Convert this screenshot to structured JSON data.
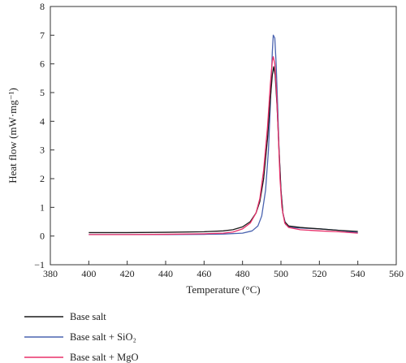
{
  "chart_data": {
    "type": "line",
    "xlabel": "Temperature (°C)",
    "ylabel": "Heat flow (mW·mg⁻¹)",
    "xlim": [
      380,
      560
    ],
    "ylim": [
      -1,
      8
    ],
    "xticks": [
      380,
      400,
      420,
      440,
      460,
      480,
      500,
      520,
      540,
      560
    ],
    "yticks": [
      -1,
      0,
      1,
      2,
      3,
      4,
      5,
      6,
      7,
      8
    ],
    "grid": false,
    "legend_position": "bottom-left",
    "series": [
      {
        "name": "Base salt",
        "color": "#1a1a1a",
        "points": [
          [
            400,
            0.12
          ],
          [
            420,
            0.12
          ],
          [
            440,
            0.13
          ],
          [
            460,
            0.15
          ],
          [
            470,
            0.18
          ],
          [
            475,
            0.22
          ],
          [
            480,
            0.32
          ],
          [
            484,
            0.5
          ],
          [
            487,
            0.8
          ],
          [
            489,
            1.2
          ],
          [
            491,
            2.0
          ],
          [
            493,
            3.4
          ],
          [
            494.5,
            4.8
          ],
          [
            495.5,
            5.6
          ],
          [
            496.2,
            5.9
          ],
          [
            497,
            5.6
          ],
          [
            498,
            4.5
          ],
          [
            499,
            3.0
          ],
          [
            500,
            1.6
          ],
          [
            501,
            0.8
          ],
          [
            502,
            0.5
          ],
          [
            504,
            0.35
          ],
          [
            510,
            0.3
          ],
          [
            520,
            0.25
          ],
          [
            530,
            0.2
          ],
          [
            540,
            0.16
          ]
        ]
      },
      {
        "name": "Base salt + SiO₂",
        "color": "#4a63b0",
        "points": [
          [
            400,
            0.05
          ],
          [
            420,
            0.05
          ],
          [
            440,
            0.05
          ],
          [
            460,
            0.06
          ],
          [
            470,
            0.07
          ],
          [
            480,
            0.1
          ],
          [
            485,
            0.18
          ],
          [
            488,
            0.35
          ],
          [
            490,
            0.7
          ],
          [
            492,
            1.6
          ],
          [
            493.5,
            3.0
          ],
          [
            494.5,
            4.6
          ],
          [
            495.5,
            6.4
          ],
          [
            496,
            7.0
          ],
          [
            496.8,
            6.9
          ],
          [
            497.5,
            6.0
          ],
          [
            498.3,
            4.5
          ],
          [
            499,
            3.0
          ],
          [
            500,
            1.6
          ],
          [
            501,
            0.8
          ],
          [
            502.5,
            0.4
          ],
          [
            505,
            0.3
          ],
          [
            510,
            0.28
          ],
          [
            520,
            0.25
          ],
          [
            530,
            0.2
          ],
          [
            540,
            0.12
          ]
        ]
      },
      {
        "name": "Base salt + MgO",
        "color": "#e8306a",
        "points": [
          [
            400,
            0.05
          ],
          [
            420,
            0.05
          ],
          [
            440,
            0.06
          ],
          [
            460,
            0.08
          ],
          [
            470,
            0.1
          ],
          [
            475,
            0.14
          ],
          [
            480,
            0.25
          ],
          [
            484,
            0.45
          ],
          [
            487,
            0.8
          ],
          [
            489,
            1.3
          ],
          [
            491,
            2.3
          ],
          [
            493,
            3.8
          ],
          [
            494.5,
            5.3
          ],
          [
            495.5,
            6.1
          ],
          [
            496,
            6.25
          ],
          [
            496.8,
            6.0
          ],
          [
            497.7,
            5.0
          ],
          [
            498.6,
            3.6
          ],
          [
            499.5,
            2.0
          ],
          [
            500.5,
            1.0
          ],
          [
            502,
            0.45
          ],
          [
            504,
            0.3
          ],
          [
            510,
            0.22
          ],
          [
            520,
            0.18
          ],
          [
            530,
            0.15
          ],
          [
            540,
            0.1
          ]
        ]
      }
    ]
  }
}
